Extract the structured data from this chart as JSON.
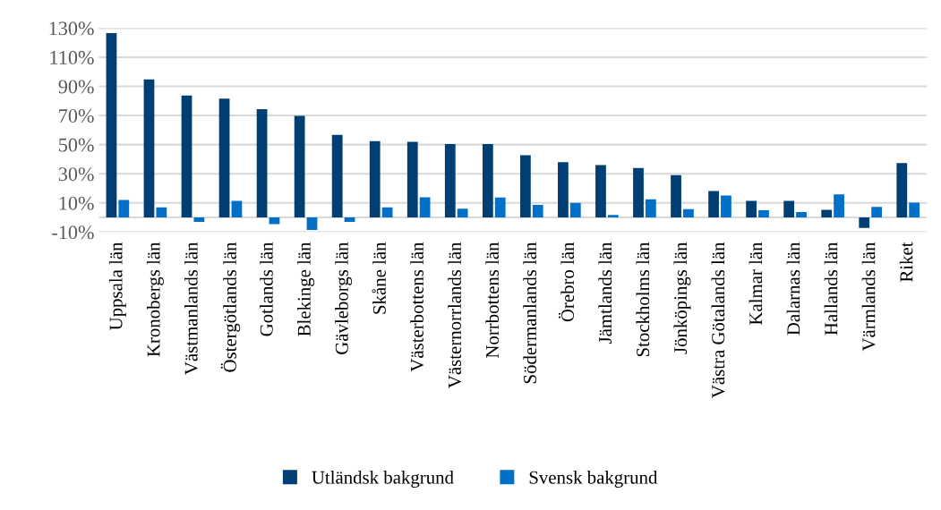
{
  "chart_data": {
    "type": "bar",
    "categories": [
      "Uppsala län",
      "Kronobergs län",
      "Västmanlands län",
      "Östergötlands län",
      "Gotlands län",
      "Blekinge län",
      "Gävleborgs län",
      "Skåne län",
      "Västerbottens län",
      "Västernorrlands län",
      "Norrbottens län",
      "Södermanlands län",
      "Örebro län",
      "Jämtlands län",
      "Stockholms län",
      "Jönköpings län",
      "Västra Götalands län",
      "Kalmar län",
      "Dalarnas län",
      "Hallands län",
      "Värmlands län",
      "Riket"
    ],
    "series": [
      {
        "name": "Utländsk bakgrund",
        "color": "#003f73",
        "values": [
          126.5,
          94.7,
          83.7,
          81.6,
          74.3,
          69.8,
          56.7,
          52.4,
          52,
          50.4,
          50.4,
          42.7,
          38,
          36,
          34,
          29,
          18.2,
          11.4,
          11.4,
          5.3,
          -7.1,
          37.3
        ]
      },
      {
        "name": "Svensk bakgrund",
        "color": "#0070c9",
        "values": [
          12,
          7,
          -3,
          11.4,
          -4.5,
          -8.6,
          -3,
          7,
          13.9,
          6,
          13.7,
          8.6,
          10,
          1.8,
          12.4,
          5.7,
          15.1,
          4.9,
          3.7,
          15.9,
          7.3,
          10.2
        ]
      }
    ],
    "ylim": [
      -10,
      130
    ],
    "yticks": [
      {
        "value": -10,
        "label": "-10%"
      },
      {
        "value": 10,
        "label": "10%"
      },
      {
        "value": 30,
        "label": "30%"
      },
      {
        "value": 50,
        "label": "50%"
      },
      {
        "value": 70,
        "label": "70%"
      },
      {
        "value": 90,
        "label": "90%"
      },
      {
        "value": 110,
        "label": "110%"
      },
      {
        "value": 130,
        "label": "130%"
      }
    ],
    "grid": "y",
    "legend": "bottom"
  }
}
